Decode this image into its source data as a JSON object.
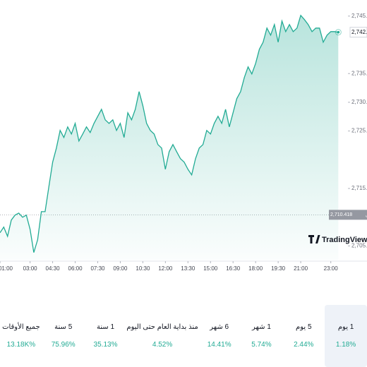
{
  "chart_data": {
    "type": "line",
    "brand": "TradingView",
    "x": [
      1,
      1.25,
      1.5,
      1.75,
      2,
      2.25,
      2.5,
      2.75,
      3,
      3.25,
      3.5,
      3.75,
      4,
      4.25,
      4.5,
      4.75,
      5,
      5.25,
      5.5,
      5.75,
      6,
      6.25,
      6.5,
      6.75,
      7,
      7.25,
      7.5,
      7.75,
      8,
      8.25,
      8.5,
      8.75,
      9,
      9.25,
      9.5,
      9.75,
      10,
      10.25,
      10.5,
      10.75,
      11,
      11.25,
      11.5,
      11.75,
      12,
      12.25,
      12.5,
      12.75,
      13,
      13.25,
      13.5,
      13.75,
      14,
      14.25,
      14.5,
      14.75,
      15,
      15.25,
      15.5,
      15.75,
      16,
      16.25,
      16.5,
      16.75,
      17,
      17.25,
      17.5,
      17.75,
      18,
      18.25,
      18.5,
      18.75,
      19,
      19.25,
      19.5,
      19.75,
      20,
      20.25,
      20.5,
      20.75,
      21,
      21.25,
      21.5,
      21.75,
      22,
      22.25,
      22.5,
      22.75,
      23,
      23.25,
      23.5
    ],
    "series": [
      {
        "color": "#22ab94",
        "values": [
          2707.29,
          2708.27,
          2706.67,
          2709.5,
          2710.36,
          2710.72,
          2709.99,
          2710.36,
          2707.9,
          2703.85,
          2706.06,
          2710.97,
          2710.97,
          2715.27,
          2719.57,
          2722.03,
          2725.1,
          2723.87,
          2725.71,
          2724.48,
          2726.33,
          2723.26,
          2724.48,
          2725.71,
          2724.73,
          2726.33,
          2727.56,
          2728.78,
          2726.94,
          2726.33,
          2726.94,
          2725.1,
          2726.33,
          2723.87,
          2728.17,
          2726.94,
          2728.78,
          2731.86,
          2729.4,
          2726.33,
          2725.1,
          2724.48,
          2722.64,
          2722.03,
          2718.34,
          2721.41,
          2722.64,
          2721.41,
          2720.18,
          2719.57,
          2718.34,
          2717.36,
          2720.18,
          2722.03,
          2722.64,
          2725.1,
          2724.48,
          2726.33,
          2727.56,
          2726.33,
          2728.78,
          2725.71,
          2728.17,
          2730.63,
          2731.86,
          2734.31,
          2736.15,
          2734.93,
          2736.77,
          2739.23,
          2740.45,
          2742.91,
          2741.68,
          2743.53,
          2740.45,
          2744.14,
          2742.3,
          2743.53,
          2742.3,
          2742.91,
          2745.12,
          2744.39,
          2743.53,
          2742.3,
          2742.91,
          2742.91,
          2740.45,
          2741.68,
          2742.3,
          2742.3,
          2742.19
        ]
      }
    ],
    "xlim": [
      1,
      24
    ],
    "xticks": [
      {
        "value": 1,
        "label": "01:00"
      },
      {
        "value": 3,
        "label": "03:00"
      },
      {
        "value": 4.5,
        "label": "04:30"
      },
      {
        "value": 6,
        "label": "06:00"
      },
      {
        "value": 7.5,
        "label": "07:30"
      },
      {
        "value": 9,
        "label": "09:00"
      },
      {
        "value": 10.5,
        "label": "10:30"
      },
      {
        "value": 12,
        "label": "12:00"
      },
      {
        "value": 13.5,
        "label": "13:30"
      },
      {
        "value": 15,
        "label": "15:00"
      },
      {
        "value": 16.5,
        "label": "16:30"
      },
      {
        "value": 18,
        "label": "18:00"
      },
      {
        "value": 19.5,
        "label": "19:30"
      },
      {
        "value": 21,
        "label": "21:00"
      },
      {
        "value": 23,
        "label": "23:00"
      }
    ],
    "ylim": [
      2702.6,
      2747.8
    ],
    "yticks": [
      {
        "value": 2705,
        "label": "2,705.000"
      },
      {
        "value": 2715,
        "label": "2,715.000"
      },
      {
        "value": 2725,
        "label": "2,725.000"
      },
      {
        "value": 2730,
        "label": "2,730.000"
      },
      {
        "value": 2735,
        "label": "2,735.000"
      },
      {
        "value": 2745,
        "label": "2,745.000"
      }
    ],
    "last_price": {
      "value": 2742.19,
      "label": "2,742.190"
    },
    "previous_close": {
      "name": "الإغلاق السابق",
      "value": 2710.418,
      "label": "2,710.418"
    }
  },
  "periods": [
    {
      "name": "1 يوم",
      "change": "1.18%",
      "selected": true
    },
    {
      "name": "5 يوم",
      "change": "2.44%"
    },
    {
      "name": "1 شهر",
      "change": "5.74%"
    },
    {
      "name": "6 شهر",
      "change": "14.41%"
    },
    {
      "name": "منذ بداية العام حتى اليوم",
      "change": "4.52%"
    },
    {
      "name": "1 سنة",
      "change": "35.13%"
    },
    {
      "name": "5 سنة",
      "change": "75.96%"
    },
    {
      "name": "جميع الأوقات",
      "change": "13.18K%"
    }
  ]
}
